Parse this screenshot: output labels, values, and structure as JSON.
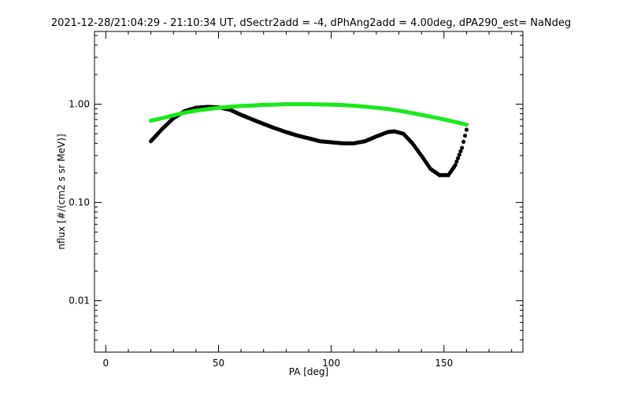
{
  "chart_data": {
    "type": "scatter",
    "title": "2021-12-28/21:04:29 - 21:10:34 UT, dSectr2add = -4, dPhAng2add = 4.00deg, dPA290_est=   NaNdeg",
    "xlabel": "PA [deg]",
    "ylabel": "nflux [#/(cm2 s sr MeV)]",
    "xlim": [
      -5,
      185
    ],
    "ylim": [
      0.003,
      5.5
    ],
    "yscale": "log",
    "x_ticks": [
      0,
      50,
      100,
      150
    ],
    "x_tick_labels": [
      "0",
      "50",
      "100",
      "150"
    ],
    "y_ticks": [
      0.01,
      0.1,
      1.0
    ],
    "y_tick_labels": [
      "0.01",
      "0.10",
      "1.00"
    ],
    "grid": false,
    "series": [
      {
        "color": "#000000",
        "points": [
          [
            20,
            0.42
          ],
          [
            25,
            0.56
          ],
          [
            30,
            0.72
          ],
          [
            35,
            0.85
          ],
          [
            40,
            0.92
          ],
          [
            45,
            0.94
          ],
          [
            50,
            0.93
          ],
          [
            55,
            0.88
          ],
          [
            60,
            0.78
          ],
          [
            65,
            0.7
          ],
          [
            70,
            0.63
          ],
          [
            75,
            0.57
          ],
          [
            80,
            0.52
          ],
          [
            85,
            0.48
          ],
          [
            90,
            0.45
          ],
          [
            95,
            0.42
          ],
          [
            100,
            0.41
          ],
          [
            105,
            0.4
          ],
          [
            110,
            0.4
          ],
          [
            115,
            0.42
          ],
          [
            120,
            0.47
          ],
          [
            125,
            0.52
          ],
          [
            128,
            0.53
          ],
          [
            132,
            0.5
          ],
          [
            136,
            0.4
          ],
          [
            140,
            0.3
          ],
          [
            144,
            0.22
          ],
          [
            148,
            0.19
          ],
          [
            152,
            0.19
          ],
          [
            155,
            0.24
          ],
          [
            158,
            0.36
          ],
          [
            160,
            0.55
          ]
        ]
      },
      {
        "color": "#1be81b",
        "points": [
          [
            20,
            0.68
          ],
          [
            25,
            0.72
          ],
          [
            30,
            0.77
          ],
          [
            35,
            0.82
          ],
          [
            40,
            0.86
          ],
          [
            45,
            0.89
          ],
          [
            50,
            0.92
          ],
          [
            55,
            0.94
          ],
          [
            60,
            0.96
          ],
          [
            65,
            0.97
          ],
          [
            70,
            0.985
          ],
          [
            75,
            0.99
          ],
          [
            80,
            1.0
          ],
          [
            85,
            1.0
          ],
          [
            90,
            1.0
          ],
          [
            95,
            0.995
          ],
          [
            100,
            0.99
          ],
          [
            105,
            0.98
          ],
          [
            110,
            0.965
          ],
          [
            115,
            0.945
          ],
          [
            120,
            0.92
          ],
          [
            125,
            0.895
          ],
          [
            130,
            0.86
          ],
          [
            135,
            0.82
          ],
          [
            140,
            0.78
          ],
          [
            145,
            0.74
          ],
          [
            150,
            0.7
          ],
          [
            155,
            0.66
          ],
          [
            160,
            0.62
          ]
        ]
      }
    ]
  }
}
